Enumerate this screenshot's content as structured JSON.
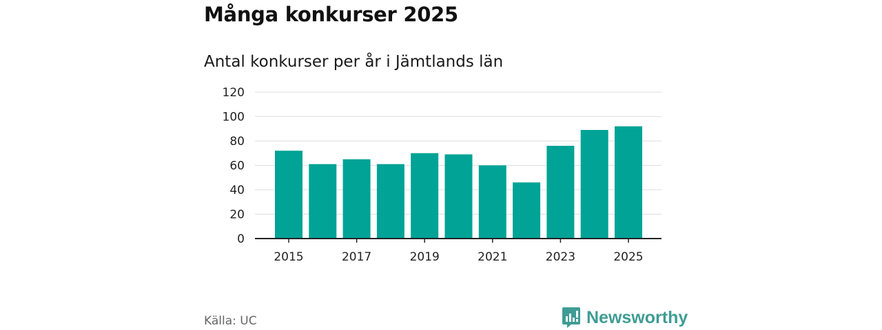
{
  "title": "Många konkurser 2025",
  "subtitle": "Antal konkurser per år i Jämtlands län",
  "source": "Källa: UC",
  "brand": {
    "name": "Newsworthy",
    "icon": "newsworthy-logo-icon"
  },
  "colors": {
    "bar": "#00a396",
    "grid": "#dddddd",
    "axis": "#222222",
    "brand": "#3f9c95"
  },
  "chart_data": {
    "type": "bar",
    "title": "Antal konkurser per år i Jämtlands län",
    "xlabel": "",
    "ylabel": "",
    "categories": [
      "2015",
      "2016",
      "2017",
      "2018",
      "2019",
      "2020",
      "2021",
      "2022",
      "2023",
      "2024",
      "2025"
    ],
    "values": [
      72,
      61,
      65,
      61,
      70,
      69,
      60,
      46,
      76,
      89,
      92
    ],
    "ylim": [
      0,
      120
    ],
    "yticks": [
      0,
      20,
      40,
      60,
      80,
      100,
      120
    ],
    "xtick_labels": [
      "2015",
      "2017",
      "2019",
      "2021",
      "2023",
      "2025"
    ],
    "grid": true,
    "legend": "none"
  }
}
